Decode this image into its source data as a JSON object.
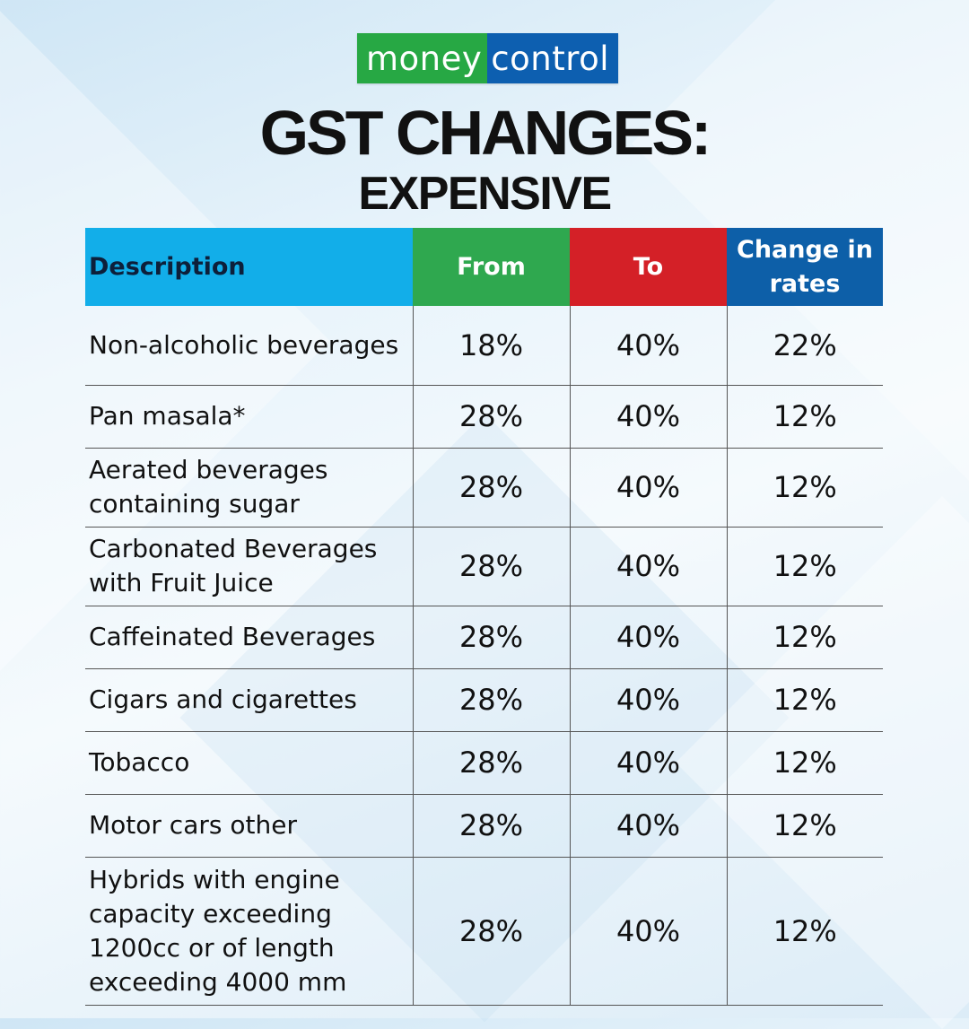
{
  "brand": {
    "part1": "money",
    "part2": "control",
    "color_green": "#27a844",
    "color_blue": "#0d5fb0"
  },
  "title": {
    "main": "GST CHANGES:",
    "sub": "EXPENSIVE"
  },
  "table": {
    "headers": {
      "description": "Description",
      "from": "From",
      "to": "To",
      "change": "Change in rates"
    },
    "header_colors": {
      "description": "#12aee9",
      "from": "#2fa84f",
      "to": "#d42027",
      "change": "#0d5fa8"
    },
    "rows": [
      {
        "description": "Non-alcoholic beverages",
        "from": "18%",
        "to": "40%",
        "change": "22%"
      },
      {
        "description": "Pan masala*",
        "from": "28%",
        "to": "40%",
        "change": "12%"
      },
      {
        "description": "Aerated beverages containing sugar",
        "from": "28%",
        "to": "40%",
        "change": "12%"
      },
      {
        "description": "Carbonated Beverages with Fruit Juice",
        "from": "28%",
        "to": "40%",
        "change": "12%"
      },
      {
        "description": "Caffeinated Beverages",
        "from": "28%",
        "to": "40%",
        "change": "12%"
      },
      {
        "description": "Cigars and cigarettes",
        "from": "28%",
        "to": "40%",
        "change": "12%"
      },
      {
        "description": "Tobacco",
        "from": "28%",
        "to": "40%",
        "change": "12%"
      },
      {
        "description": "Motor cars other",
        "from": "28%",
        "to": "40%",
        "change": "12%"
      },
      {
        "description": "Hybrids with engine capacity exceeding 1200cc or of length exceeding 4000 mm",
        "from": "28%",
        "to": "40%",
        "change": "12%"
      }
    ]
  }
}
